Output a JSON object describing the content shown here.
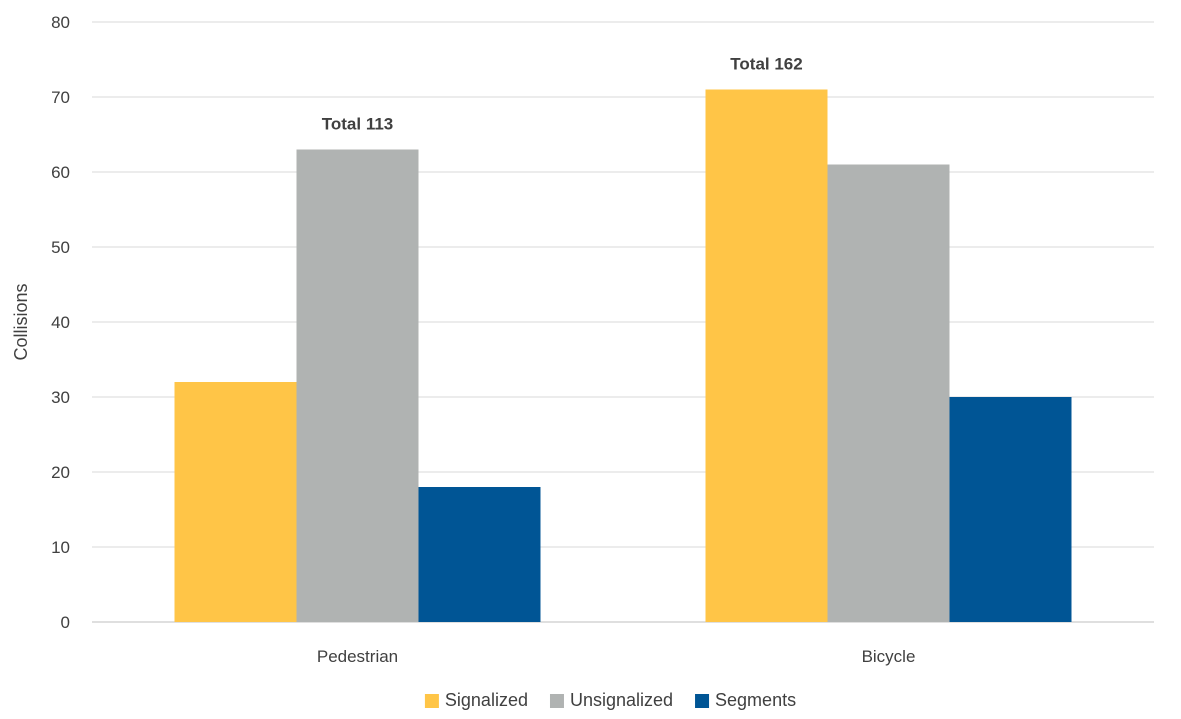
{
  "chart_data": {
    "type": "bar",
    "categories": [
      "Pedestrian",
      "Bicycle"
    ],
    "series": [
      {
        "name": "Signalized",
        "values": [
          32,
          71
        ],
        "color": "#FFC547"
      },
      {
        "name": "Unsignalized",
        "values": [
          63,
          61
        ],
        "color": "#B0B3B2"
      },
      {
        "name": "Segments",
        "values": [
          18,
          30
        ],
        "color": "#005595"
      }
    ],
    "xlabel": "",
    "ylabel": "Collisions",
    "ylim": [
      0,
      80
    ],
    "yticks": [
      0,
      10,
      20,
      30,
      40,
      50,
      60,
      70,
      80
    ],
    "grid": true,
    "legend_position": "bottom",
    "annotations": [
      {
        "category": "Pedestrian",
        "text": "Total 113"
      },
      {
        "category": "Bicycle",
        "text": "Total 162"
      }
    ]
  }
}
